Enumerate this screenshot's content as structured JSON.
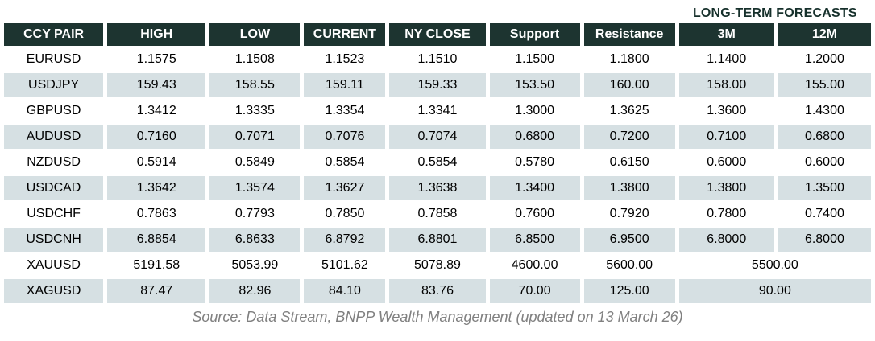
{
  "table": {
    "caption": "LONG-TERM FORECASTS",
    "columns": [
      "CCY PAIR",
      "HIGH",
      "LOW",
      "CURRENT",
      "NY CLOSE",
      "Support",
      "Resistance",
      "3M",
      "12M"
    ],
    "rows": [
      {
        "pair": "EURUSD",
        "values": [
          "1.1575",
          "1.1508",
          "1.1523",
          "1.1510",
          "1.1500",
          "1.1800",
          "1.1400",
          "1.2000"
        ]
      },
      {
        "pair": "USDJPY",
        "values": [
          "159.43",
          "158.55",
          "159.11",
          "159.33",
          "153.50",
          "160.00",
          "158.00",
          "155.00"
        ]
      },
      {
        "pair": "GBPUSD",
        "values": [
          "1.3412",
          "1.3335",
          "1.3354",
          "1.3341",
          "1.3000",
          "1.3625",
          "1.3600",
          "1.4300"
        ]
      },
      {
        "pair": "AUDUSD",
        "values": [
          "0.7160",
          "0.7071",
          "0.7076",
          "0.7074",
          "0.6800",
          "0.7200",
          "0.7100",
          "0.6800"
        ]
      },
      {
        "pair": "NZDUSD",
        "values": [
          "0.5914",
          "0.5849",
          "0.5854",
          "0.5854",
          "0.5780",
          "0.6150",
          "0.6000",
          "0.6000"
        ]
      },
      {
        "pair": "USDCAD",
        "values": [
          "1.3642",
          "1.3574",
          "1.3627",
          "1.3638",
          "1.3400",
          "1.3800",
          "1.3800",
          "1.3500"
        ]
      },
      {
        "pair": "USDCHF",
        "values": [
          "0.7863",
          "0.7793",
          "0.7850",
          "0.7858",
          "0.7600",
          "0.7920",
          "0.7800",
          "0.7400"
        ]
      },
      {
        "pair": "USDCNH",
        "values": [
          "6.8854",
          "6.8633",
          "6.8792",
          "6.8801",
          "6.8500",
          "6.9500",
          "6.8000",
          "6.8000"
        ]
      },
      {
        "pair": "XAUUSD",
        "values": [
          "5191.58",
          "5053.99",
          "5101.62",
          "5078.89",
          "4600.00",
          "5600.00"
        ],
        "merged_forecast": "5500.00"
      },
      {
        "pair": "XAGUSD",
        "values": [
          "87.47",
          "82.96",
          "84.10",
          "83.76",
          "70.00",
          "125.00"
        ],
        "merged_forecast": "90.00"
      }
    ]
  },
  "colors": {
    "header_bg": "#1d3430",
    "header_text": "#ffffff",
    "row_alt_bg": "#d6e0e3",
    "caption_text": "#16302b",
    "source_text": "#808080"
  },
  "footer": {
    "source": "Source: Data Stream, BNPP Wealth Management (updated on 13 March 26)"
  }
}
